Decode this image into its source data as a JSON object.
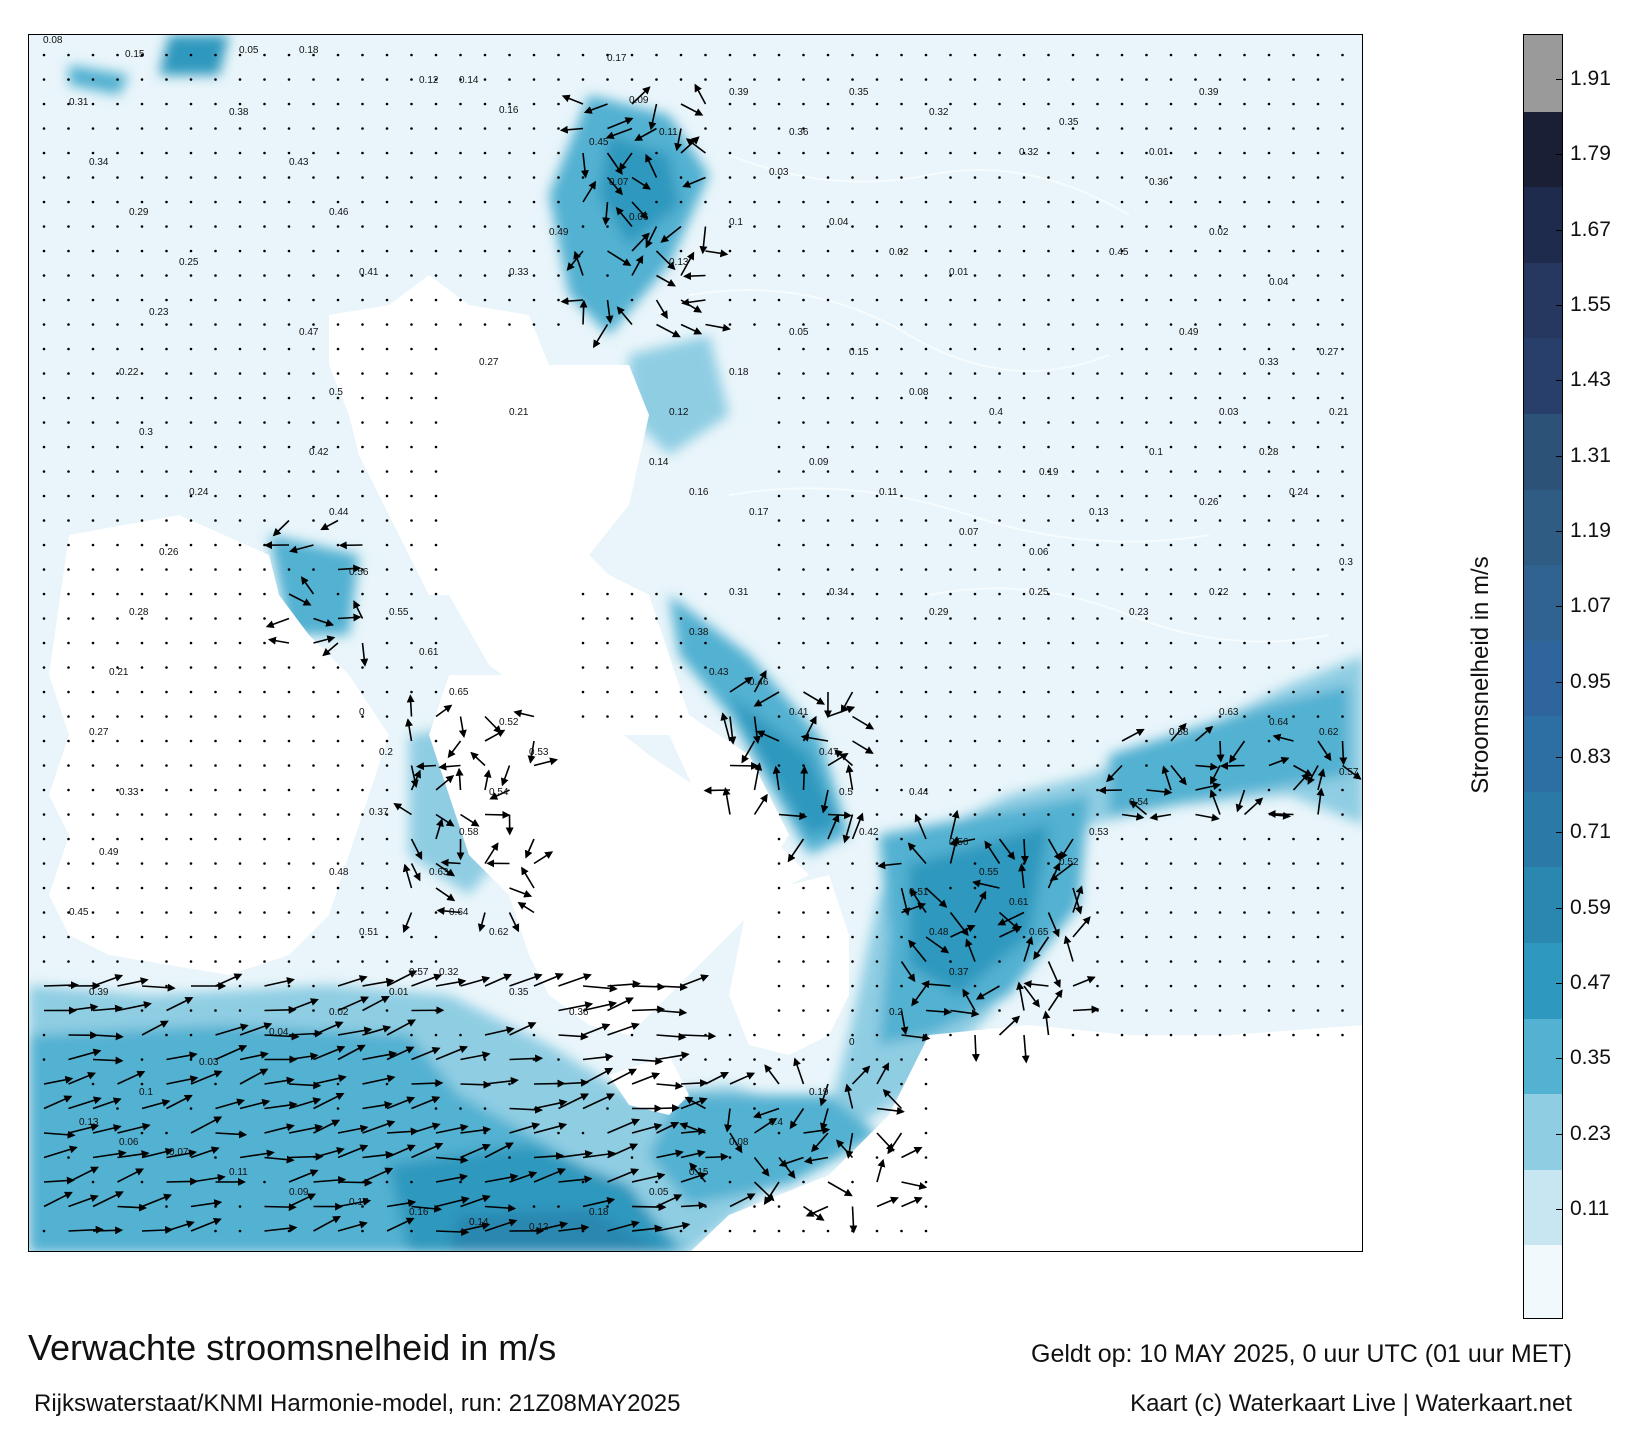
{
  "map": {
    "title": "Verwachte stroomsnelheid in m/s",
    "subtitle": "Rijkswaterstaat/KNMI Harmonie-model, run: 21Z08MAY2025",
    "valid_time": "Geldt op: 10 MAY 2025, 0 uur UTC (01 uur MET)",
    "credit": "Kaart (c) Waterkaart Live | Waterkaart.net"
  },
  "legend": {
    "title": "Stroomsnelheid in m/s",
    "ticks": [
      "1.91",
      "1.79",
      "1.67",
      "1.55",
      "1.43",
      "1.31",
      "1.19",
      "1.07",
      "0.95",
      "0.83",
      "0.71",
      "0.59",
      "0.47",
      "0.35",
      "0.23",
      "0.11"
    ],
    "colors": [
      "#f2f9fc",
      "#c8e6f1",
      "#8fcde3",
      "#53b1d1",
      "#2f98be",
      "#2a87b0",
      "#2b79a6",
      "#2d6ea3",
      "#2f659d",
      "#30638f",
      "#2f5c83",
      "#2c5278",
      "#283f6c",
      "#26385f",
      "#1f2b4c",
      "#1a1f36",
      "#9a9a9a"
    ],
    "land_color": "#ffffff",
    "sea_color": "#e9f5fa"
  },
  "speed_labels": [
    {
      "value": "0.08"
    },
    {
      "value": "0.15"
    },
    {
      "value": "0.05"
    },
    {
      "value": "0.18"
    },
    {
      "value": "0.12"
    },
    {
      "value": "0.14"
    },
    {
      "value": "0.16"
    },
    {
      "value": "0.17"
    },
    {
      "value": "0.09"
    },
    {
      "value": "0.11"
    },
    {
      "value": "0.07"
    },
    {
      "value": "0.06"
    },
    {
      "value": "0.13"
    },
    {
      "value": "0.1"
    },
    {
      "value": "0.03"
    },
    {
      "value": "0.04"
    },
    {
      "value": "0.02"
    },
    {
      "value": "0.01"
    },
    {
      "value": "0.32"
    },
    {
      "value": "0.35"
    },
    {
      "value": "0.36"
    },
    {
      "value": "0.39"
    },
    {
      "value": "0.45"
    },
    {
      "value": "0.49"
    },
    {
      "value": "0.33"
    },
    {
      "value": "0.27"
    },
    {
      "value": "0.21"
    },
    {
      "value": "0.28"
    },
    {
      "value": "0.26"
    },
    {
      "value": "0.24"
    },
    {
      "value": "0.3"
    },
    {
      "value": "0.22"
    },
    {
      "value": "0.23"
    },
    {
      "value": "0.25"
    },
    {
      "value": "0.29"
    },
    {
      "value": "0.34"
    },
    {
      "value": "0.31"
    },
    {
      "value": "0.38"
    },
    {
      "value": "0.43"
    },
    {
      "value": "0.46"
    },
    {
      "value": "0.41"
    },
    {
      "value": "0.47"
    },
    {
      "value": "0.5"
    },
    {
      "value": "0.42"
    },
    {
      "value": "0.44"
    },
    {
      "value": "0.56"
    },
    {
      "value": "0.55"
    },
    {
      "value": "0.61"
    },
    {
      "value": "0.65"
    },
    {
      "value": "0.52"
    },
    {
      "value": "0.53"
    },
    {
      "value": "0.54"
    },
    {
      "value": "0.58"
    },
    {
      "value": "0.63"
    },
    {
      "value": "0.64"
    },
    {
      "value": "0.62"
    },
    {
      "value": "0.57"
    },
    {
      "value": "0.51"
    },
    {
      "value": "0.48"
    },
    {
      "value": "0.37"
    },
    {
      "value": "0.2"
    },
    {
      "value": "0"
    },
    {
      "value": "0.19"
    },
    {
      "value": "0.4"
    }
  ]
}
